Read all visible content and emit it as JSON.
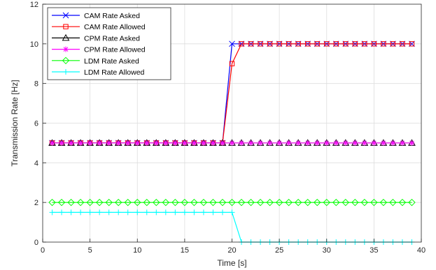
{
  "chart_data": {
    "type": "line",
    "xlabel": "Time [s]",
    "ylabel": "Transmission Rate [Hz]",
    "xlim": [
      0,
      40
    ],
    "ylim": [
      0,
      12
    ],
    "x_ticks": [
      "0",
      "5",
      "10",
      "15",
      "20",
      "25",
      "30",
      "35",
      "40"
    ],
    "y_ticks": [
      "0",
      "2",
      "4",
      "6",
      "8",
      "10",
      "12"
    ],
    "grid": true,
    "legend_position": "top-left",
    "x": [
      1,
      2,
      3,
      4,
      5,
      6,
      7,
      8,
      9,
      10,
      11,
      12,
      13,
      14,
      15,
      16,
      17,
      18,
      19,
      20,
      21,
      22,
      23,
      24,
      25,
      26,
      27,
      28,
      29,
      30,
      31,
      32,
      33,
      34,
      35,
      36,
      37,
      38,
      39
    ],
    "series": [
      {
        "name": "CAM Rate Asked",
        "color": "#0000ff",
        "marker": "x",
        "values": [
          5,
          5,
          5,
          5,
          5,
          5,
          5,
          5,
          5,
          5,
          5,
          5,
          5,
          5,
          5,
          5,
          5,
          5,
          5,
          10,
          10,
          10,
          10,
          10,
          10,
          10,
          10,
          10,
          10,
          10,
          10,
          10,
          10,
          10,
          10,
          10,
          10,
          10,
          10
        ]
      },
      {
        "name": "CAM Rate Allowed",
        "color": "#ff0000",
        "marker": "square",
        "values": [
          5,
          5,
          5,
          5,
          5,
          5,
          5,
          5,
          5,
          5,
          5,
          5,
          5,
          5,
          5,
          5,
          5,
          5,
          5,
          9,
          10,
          10,
          10,
          10,
          10,
          10,
          10,
          10,
          10,
          10,
          10,
          10,
          10,
          10,
          10,
          10,
          10,
          10,
          10
        ]
      },
      {
        "name": "CPM Rate Asked",
        "color": "#000000",
        "marker": "triangle",
        "values": [
          5,
          5,
          5,
          5,
          5,
          5,
          5,
          5,
          5,
          5,
          5,
          5,
          5,
          5,
          5,
          5,
          5,
          5,
          5,
          5,
          5,
          5,
          5,
          5,
          5,
          5,
          5,
          5,
          5,
          5,
          5,
          5,
          5,
          5,
          5,
          5,
          5,
          5,
          5
        ]
      },
      {
        "name": "CPM Rate Allowed",
        "color": "#ff00ff",
        "marker": "star",
        "values": [
          5,
          5,
          5,
          5,
          5,
          5,
          5,
          5,
          5,
          5,
          5,
          5,
          5,
          5,
          5,
          5,
          5,
          5,
          5,
          5,
          5,
          5,
          5,
          5,
          5,
          5,
          5,
          5,
          5,
          5,
          5,
          5,
          5,
          5,
          5,
          5,
          5,
          5,
          5
        ]
      },
      {
        "name": "LDM Rate Asked",
        "color": "#00ff00",
        "marker": "diamond",
        "values": [
          2,
          2,
          2,
          2,
          2,
          2,
          2,
          2,
          2,
          2,
          2,
          2,
          2,
          2,
          2,
          2,
          2,
          2,
          2,
          2,
          2,
          2,
          2,
          2,
          2,
          2,
          2,
          2,
          2,
          2,
          2,
          2,
          2,
          2,
          2,
          2,
          2,
          2,
          2
        ]
      },
      {
        "name": "LDM Rate Allowed",
        "color": "#00ffff",
        "marker": "plus",
        "values": [
          1.5,
          1.5,
          1.5,
          1.5,
          1.5,
          1.5,
          1.5,
          1.5,
          1.5,
          1.5,
          1.5,
          1.5,
          1.5,
          1.5,
          1.5,
          1.5,
          1.5,
          1.5,
          1.5,
          1.5,
          0,
          0,
          0,
          0,
          0,
          0,
          0,
          0,
          0,
          0,
          0,
          0,
          0,
          0,
          0,
          0,
          0,
          0,
          0
        ]
      }
    ]
  }
}
